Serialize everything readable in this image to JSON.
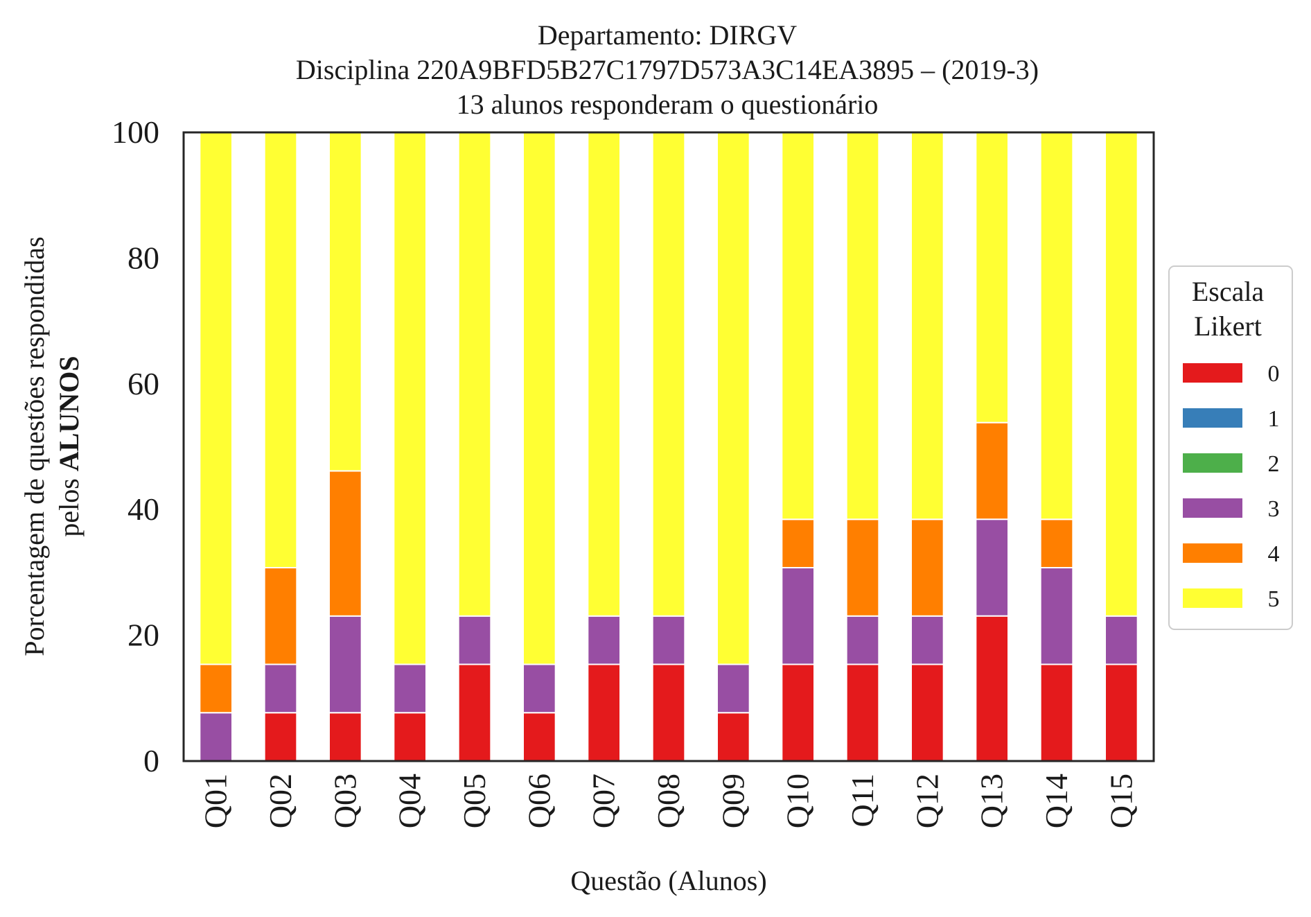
{
  "chart_data": {
    "type": "bar",
    "stacked": true,
    "title_lines": [
      "Departamento: DIRGV",
      "Disciplina 220A9BFD5B27C1797D573A3C14EA3895 – (2019-3)",
      "13 alunos responderam o questionário"
    ],
    "xlabel": "Questão (Alunos)",
    "ylabel_line1": "Porcentagem de questões respondidas",
    "ylabel_line2_prefix": "pelos ",
    "ylabel_line2_bold": "ALUNOS",
    "ylim": [
      0,
      100
    ],
    "yticks": [
      "0",
      "20",
      "40",
      "60",
      "80",
      "100"
    ],
    "grid": false,
    "legend_position": "right",
    "legend_title_lines": [
      "Escala",
      "Likert"
    ],
    "categories": [
      "Q01",
      "Q02",
      "Q03",
      "Q04",
      "Q05",
      "Q06",
      "Q07",
      "Q08",
      "Q09",
      "Q10",
      "Q11",
      "Q12",
      "Q13",
      "Q14",
      "Q15"
    ],
    "series": [
      {
        "name": "0",
        "color": "#e41a1c",
        "values": [
          0,
          7.69,
          7.69,
          7.69,
          15.38,
          7.69,
          15.38,
          15.38,
          7.69,
          15.38,
          15.38,
          15.38,
          23.08,
          15.38,
          15.38
        ]
      },
      {
        "name": "1",
        "color": "#377eb8",
        "values": [
          0,
          0,
          0,
          0,
          0,
          0,
          0,
          0,
          0,
          0,
          0,
          0,
          0,
          0,
          0
        ]
      },
      {
        "name": "2",
        "color": "#4daf4a",
        "values": [
          0,
          0,
          0,
          0,
          0,
          0,
          0,
          0,
          0,
          0,
          0,
          0,
          0,
          0,
          0
        ]
      },
      {
        "name": "3",
        "color": "#984ea3",
        "values": [
          7.69,
          7.69,
          15.38,
          7.69,
          7.69,
          7.69,
          7.69,
          7.69,
          7.69,
          15.38,
          7.69,
          7.69,
          15.38,
          15.38,
          7.69
        ]
      },
      {
        "name": "4",
        "color": "#ff7f00",
        "values": [
          7.69,
          15.38,
          23.08,
          0,
          0,
          0,
          0,
          0,
          0,
          7.69,
          15.38,
          15.38,
          15.38,
          7.69,
          0
        ]
      },
      {
        "name": "5",
        "color": "#ffff33",
        "values": [
          84.62,
          69.23,
          53.85,
          84.62,
          76.92,
          84.62,
          76.92,
          76.92,
          84.62,
          61.54,
          61.54,
          61.54,
          46.15,
          61.54,
          76.92
        ]
      }
    ]
  }
}
